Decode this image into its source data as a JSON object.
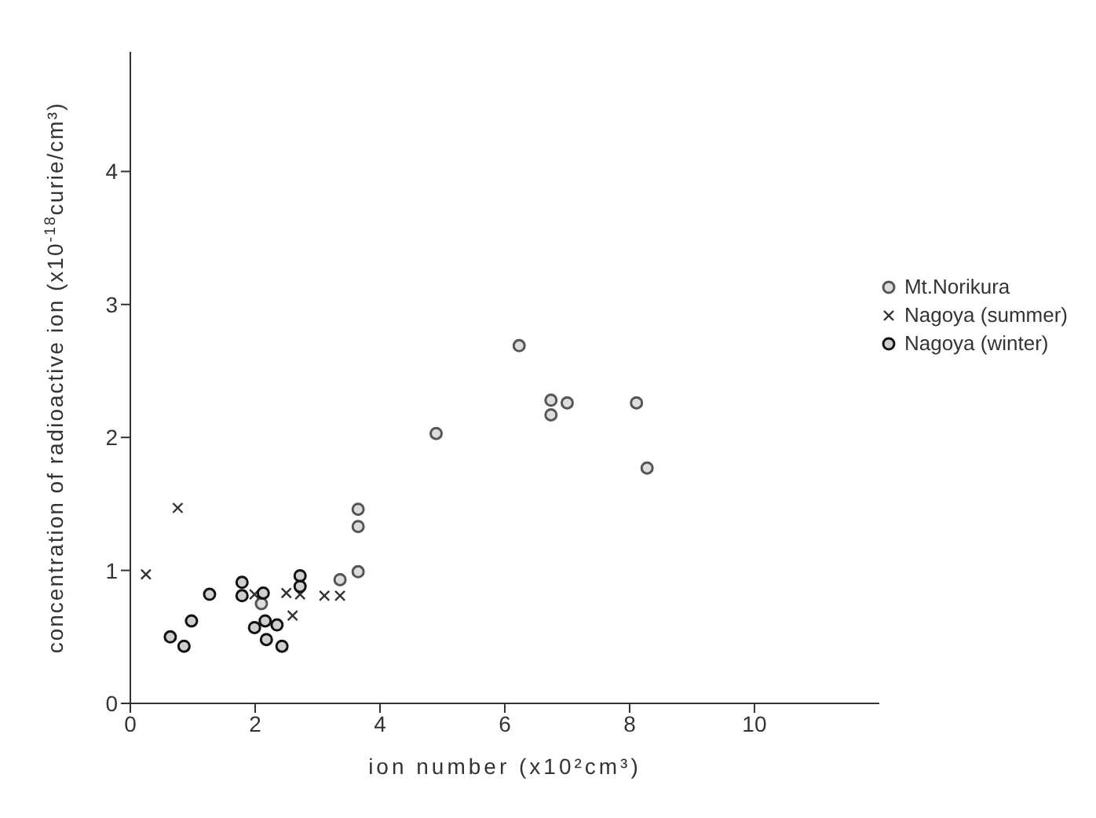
{
  "chart_data": {
    "type": "scatter",
    "xlabel": "ion number (x10²cm³)",
    "ylabel": "concentration of radioactive ion (x10$^{-18}$curie/cm³)",
    "xlim": [
      0,
      12
    ],
    "xticks": [
      0,
      2,
      4,
      6,
      8,
      10
    ],
    "ylim": [
      0,
      4.9
    ],
    "yticks": [
      0,
      1,
      2,
      3,
      4
    ],
    "grid": false,
    "legend": "right",
    "series": [
      {
        "name": "Mt.Norikura",
        "color": "#555555",
        "marker": "circle",
        "x": [
          2.1,
          3.36,
          3.65,
          3.65,
          3.65,
          4.9,
          6.23,
          6.74,
          6.74,
          7.0,
          8.11,
          8.28
        ],
        "values": [
          0.75,
          0.93,
          0.99,
          1.33,
          1.46,
          2.03,
          2.69,
          2.28,
          2.17,
          2.26,
          2.26,
          1.77
        ]
      },
      {
        "name": "Nagoya (summer)",
        "color": "#333333",
        "marker": "cross",
        "x": [
          0.25,
          0.76,
          1.99,
          2.5,
          2.6,
          2.72,
          3.11,
          3.36
        ],
        "values": [
          0.97,
          1.47,
          0.82,
          0.83,
          0.66,
          0.82,
          0.81,
          0.81
        ]
      },
      {
        "name": "Nagoya (winter)",
        "color": "#111111",
        "marker": "circle",
        "x": [
          0.64,
          0.86,
          0.98,
          1.27,
          1.79,
          1.79,
          2.13,
          1.99,
          2.16,
          2.18,
          2.35,
          2.43,
          2.72,
          2.72
        ],
        "values": [
          0.5,
          0.43,
          0.62,
          0.82,
          0.91,
          0.81,
          0.83,
          0.57,
          0.62,
          0.48,
          0.59,
          0.43,
          0.96,
          0.88
        ]
      }
    ]
  }
}
